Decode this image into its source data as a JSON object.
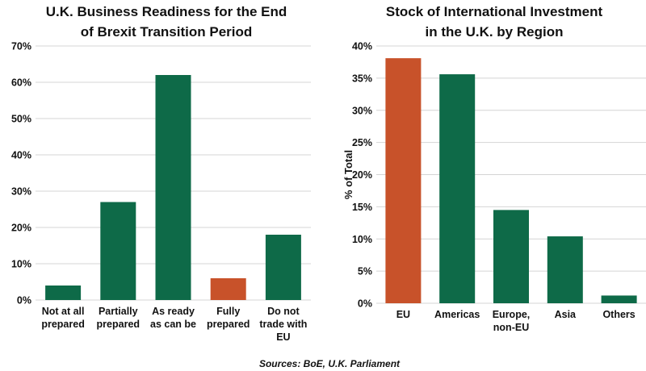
{
  "chart_data": [
    {
      "type": "bar",
      "title": [
        "U.K. Business Readiness for the End",
        "of Brexit Transition Period"
      ],
      "categories": [
        [
          "Not at all",
          "prepared"
        ],
        [
          "Partially",
          "prepared"
        ],
        [
          "As ready",
          "as can be"
        ],
        [
          "Fully",
          "prepared"
        ],
        [
          "Do not",
          "trade with",
          "EU"
        ]
      ],
      "values": [
        4,
        27,
        62,
        6,
        18
      ],
      "unit": "%",
      "colors": [
        "#0e6a48",
        "#0e6a48",
        "#0e6a48",
        "#c8522a",
        "#0e6a48"
      ],
      "ylim": [
        0,
        70
      ],
      "yticks": [
        0,
        10,
        20,
        30,
        40,
        50,
        60,
        70
      ],
      "ylabel": "",
      "grid": true
    },
    {
      "type": "bar",
      "title": [
        "Stock of International Investment",
        "in the U.K. by Region"
      ],
      "categories": [
        [
          "EU"
        ],
        [
          "Americas"
        ],
        [
          "Europe,",
          "non-EU"
        ],
        [
          "Asia"
        ],
        [
          "Others"
        ]
      ],
      "values": [
        38.1,
        35.6,
        14.5,
        10.4,
        1.2
      ],
      "unit": "%",
      "colors": [
        "#c8522a",
        "#0e6a48",
        "#0e6a48",
        "#0e6a48",
        "#0e6a48"
      ],
      "ylim": [
        0,
        40
      ],
      "yticks": [
        0,
        5,
        10,
        15,
        20,
        25,
        30,
        35,
        40
      ],
      "ylabel": "% of Total",
      "grid": true
    }
  ],
  "source": "Sources: BoE, U.K. Parliament"
}
